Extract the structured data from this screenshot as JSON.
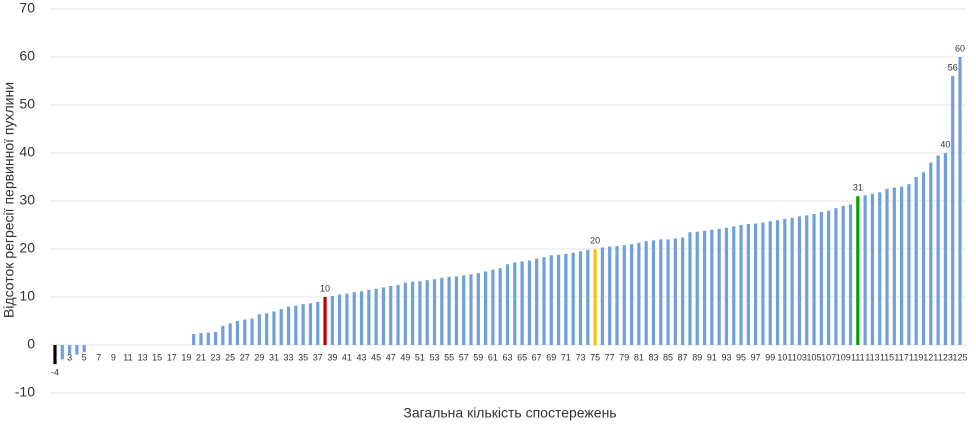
{
  "chart_data": {
    "type": "bar",
    "y_label": "Відсоток регресії первинної пухлини",
    "x_label": "Загальна кількість спостережень",
    "ylim": [
      -10,
      70
    ],
    "yticks": [
      -10,
      0,
      10,
      20,
      30,
      40,
      50,
      60,
      70
    ],
    "grid": true,
    "categories": [
      null,
      null,
      3,
      null,
      5,
      null,
      7,
      null,
      9,
      null,
      11,
      null,
      13,
      null,
      15,
      null,
      17,
      null,
      19,
      null,
      21,
      null,
      23,
      null,
      25,
      null,
      27,
      null,
      29,
      null,
      31,
      null,
      33,
      null,
      35,
      null,
      37,
      null,
      39,
      null,
      41,
      null,
      43,
      null,
      45,
      null,
      47,
      null,
      49,
      null,
      51,
      null,
      53,
      null,
      55,
      null,
      57,
      null,
      59,
      null,
      61,
      null,
      63,
      null,
      65,
      null,
      67,
      null,
      69,
      null,
      71,
      null,
      73,
      null,
      75,
      null,
      77,
      null,
      79,
      null,
      81,
      null,
      83,
      null,
      85,
      null,
      87,
      null,
      89,
      null,
      91,
      null,
      93,
      null,
      95,
      null,
      97,
      null,
      99,
      null,
      101,
      null,
      103,
      null,
      105,
      null,
      107,
      null,
      109,
      null,
      111,
      null,
      113,
      null,
      115,
      null,
      117,
      null,
      119,
      null,
      121,
      null,
      123,
      null,
      125
    ],
    "values": [
      -4,
      -3,
      -2,
      -2,
      -1.5,
      0,
      0,
      0,
      0,
      0,
      0,
      0,
      0,
      0,
      0,
      0,
      0,
      0,
      0,
      2.3,
      2.5,
      2.6,
      2.7,
      4,
      4.5,
      5,
      5.3,
      5.5,
      6.4,
      6.6,
      7,
      7.5,
      8,
      8.2,
      8.5,
      8.7,
      9,
      10,
      10.2,
      10.5,
      10.7,
      11,
      11.2,
      11.5,
      11.7,
      12,
      12.3,
      12.5,
      13,
      13.2,
      13.3,
      13.5,
      13.7,
      14,
      14.2,
      14.3,
      14.5,
      14.7,
      15,
      15.3,
      15.7,
      16,
      16.8,
      17.2,
      17.4,
      17.6,
      18,
      18.3,
      18.7,
      18.8,
      19,
      19.2,
      19.5,
      19.8,
      20,
      20.3,
      20.5,
      20.6,
      20.8,
      21,
      21.3,
      21.6,
      21.8,
      22,
      22,
      22.2,
      22.4,
      23.5,
      23.6,
      23.8,
      24,
      24.2,
      24.4,
      24.7,
      25,
      25.2,
      25.3,
      25.5,
      25.8,
      26,
      26.3,
      26.5,
      26.8,
      27,
      27.3,
      27.7,
      28,
      28.5,
      29,
      29.3,
      31,
      31.2,
      31.5,
      31.8,
      32.5,
      32.8,
      33,
      33.5,
      35,
      36,
      38,
      39.5,
      40,
      56,
      60
    ],
    "value_labels": [
      "-4",
      null,
      null,
      null,
      null,
      null,
      null,
      null,
      null,
      null,
      null,
      null,
      null,
      null,
      null,
      null,
      null,
      null,
      null,
      null,
      null,
      null,
      null,
      null,
      null,
      null,
      null,
      null,
      null,
      null,
      null,
      null,
      null,
      null,
      null,
      null,
      null,
      "10",
      null,
      null,
      null,
      null,
      null,
      null,
      null,
      null,
      null,
      null,
      null,
      null,
      null,
      null,
      null,
      null,
      null,
      null,
      null,
      null,
      null,
      null,
      null,
      null,
      null,
      null,
      null,
      null,
      null,
      null,
      null,
      null,
      null,
      null,
      null,
      null,
      "20",
      null,
      null,
      null,
      null,
      null,
      null,
      null,
      null,
      null,
      null,
      null,
      null,
      null,
      null,
      null,
      null,
      null,
      null,
      null,
      null,
      null,
      null,
      null,
      null,
      null,
      null,
      null,
      null,
      null,
      null,
      null,
      null,
      null,
      null,
      null,
      "31",
      null,
      null,
      null,
      null,
      null,
      null,
      null,
      null,
      null,
      null,
      null,
      "40",
      "56",
      "60"
    ],
    "colors": [
      "#000000",
      "#6fa0dc",
      "#6fa0dc",
      "#6fa0dc",
      "#6fa0dc",
      "#6fa0dc",
      "#6fa0dc",
      "#6fa0dc",
      "#6fa0dc",
      "#6fa0dc",
      "#6fa0dc",
      "#6fa0dc",
      "#6fa0dc",
      "#6fa0dc",
      "#6fa0dc",
      "#6fa0dc",
      "#6fa0dc",
      "#6fa0dc",
      "#6fa0dc",
      "#6fa0dc",
      "#6fa0dc",
      "#6fa0dc",
      "#6fa0dc",
      "#6fa0dc",
      "#6fa0dc",
      "#6fa0dc",
      "#6fa0dc",
      "#6fa0dc",
      "#6fa0dc",
      "#6fa0dc",
      "#6fa0dc",
      "#6fa0dc",
      "#6fa0dc",
      "#6fa0dc",
      "#6fa0dc",
      "#6fa0dc",
      "#6fa0dc",
      "#c00000",
      "#6fa0dc",
      "#6fa0dc",
      "#6fa0dc",
      "#6fa0dc",
      "#6fa0dc",
      "#6fa0dc",
      "#6fa0dc",
      "#6fa0dc",
      "#6fa0dc",
      "#6fa0dc",
      "#6fa0dc",
      "#6fa0dc",
      "#6fa0dc",
      "#6fa0dc",
      "#6fa0dc",
      "#6fa0dc",
      "#6fa0dc",
      "#6fa0dc",
      "#6fa0dc",
      "#6fa0dc",
      "#6fa0dc",
      "#6fa0dc",
      "#6fa0dc",
      "#6fa0dc",
      "#6fa0dc",
      "#6fa0dc",
      "#6fa0dc",
      "#6fa0dc",
      "#6fa0dc",
      "#6fa0dc",
      "#6fa0dc",
      "#6fa0dc",
      "#6fa0dc",
      "#6fa0dc",
      "#6fa0dc",
      "#6fa0dc",
      "#ffc000",
      "#6fa0dc",
      "#6fa0dc",
      "#6fa0dc",
      "#6fa0dc",
      "#6fa0dc",
      "#6fa0dc",
      "#6fa0dc",
      "#6fa0dc",
      "#6fa0dc",
      "#6fa0dc",
      "#6fa0dc",
      "#6fa0dc",
      "#6fa0dc",
      "#6fa0dc",
      "#6fa0dc",
      "#6fa0dc",
      "#6fa0dc",
      "#6fa0dc",
      "#6fa0dc",
      "#6fa0dc",
      "#6fa0dc",
      "#6fa0dc",
      "#6fa0dc",
      "#6fa0dc",
      "#6fa0dc",
      "#6fa0dc",
      "#6fa0dc",
      "#6fa0dc",
      "#6fa0dc",
      "#6fa0dc",
      "#6fa0dc",
      "#6fa0dc",
      "#6fa0dc",
      "#6fa0dc",
      "#6fa0dc",
      "#00a000",
      "#6fa0dc",
      "#6fa0dc",
      "#6fa0dc",
      "#6fa0dc",
      "#6fa0dc",
      "#6fa0dc",
      "#6fa0dc",
      "#6fa0dc",
      "#6fa0dc",
      "#6fa0dc",
      "#6fa0dc",
      "#6fa0dc",
      "#6fa0dc",
      "#6fa0dc"
    ]
  }
}
